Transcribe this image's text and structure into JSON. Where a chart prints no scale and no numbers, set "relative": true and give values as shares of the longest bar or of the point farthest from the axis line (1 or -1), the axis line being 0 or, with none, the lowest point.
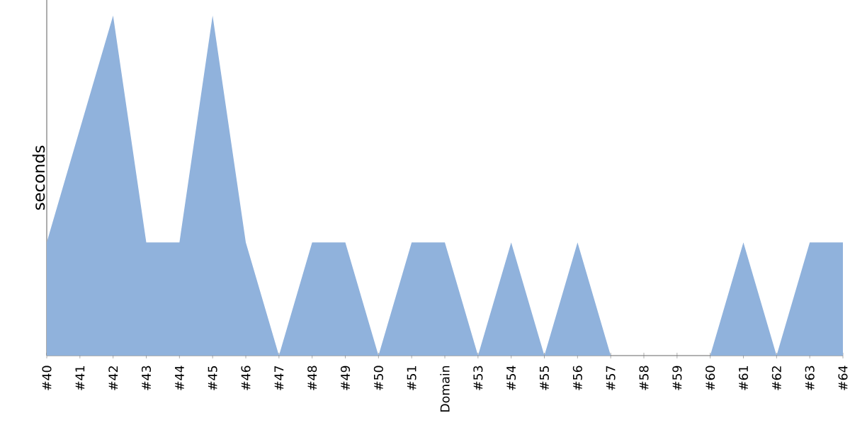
{
  "chart_data": {
    "type": "area",
    "ylabel": "seconds",
    "relative": true,
    "color": "#90b2dc",
    "categories": [
      "#40",
      "#41",
      "#42",
      "#43",
      "#44",
      "#45",
      "#46",
      "#47",
      "#48",
      "#49",
      "#50",
      "#51",
      "Domain",
      "#53",
      "#54",
      "#55",
      "#56",
      "#57",
      "#58",
      "#59",
      "#60",
      "#61",
      "#62",
      "#63",
      "#64"
    ],
    "values": [
      0.333,
      0.667,
      1,
      0.333,
      0.333,
      1,
      0.333,
      0,
      0.333,
      0.333,
      0,
      0.333,
      0.333,
      0,
      0.333,
      0,
      0.333,
      0,
      0,
      0,
      0,
      0.333,
      0,
      0.333,
      0.333
    ]
  }
}
